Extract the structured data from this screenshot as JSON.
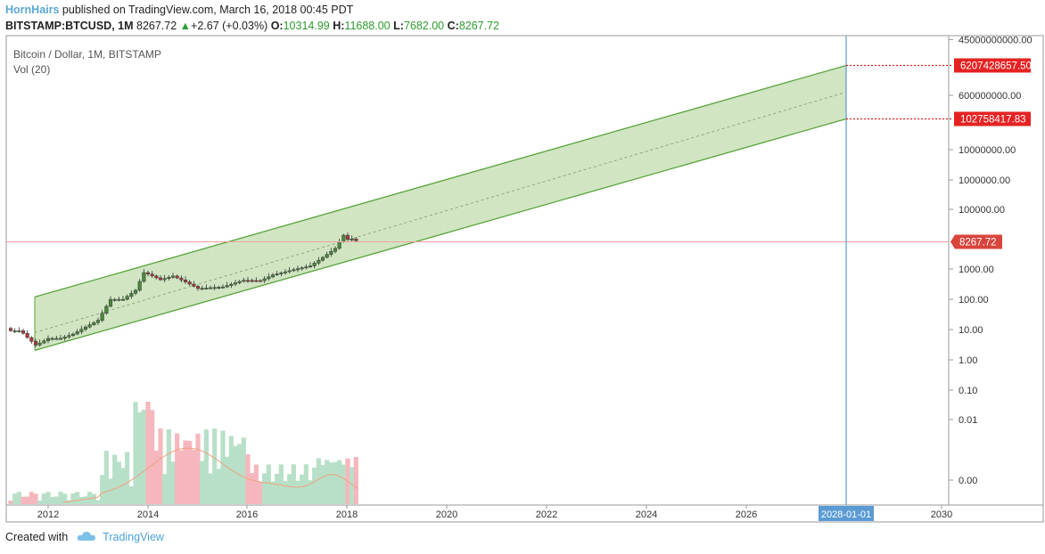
{
  "header": {
    "author": "HornHairs",
    "published_text": "published on TradingView.com, March 16, 2018 00:45 PDT",
    "symbol": "BITSTAMP:BTCUSD, 1M",
    "last": "8267.72",
    "change": "+2.67 (+0.03%)",
    "o_label": "O:",
    "o_value": "10314.99",
    "h_label": "H:",
    "h_value": "11688.00",
    "l_label": "L:",
    "l_value": "7682.00",
    "c_label": "C:",
    "c_value": "8267.72"
  },
  "legend": {
    "title": "Bitcoin / Dollar, 1M, BITSTAMP",
    "vol": "Vol (20)"
  },
  "footer": {
    "created_with": "Created with",
    "brand": "TradingView"
  },
  "colors": {
    "up_candle": "#4a8a3a",
    "down_candle": "#b23a3a",
    "channel_fill": "#c9e0b8",
    "channel_line": "#5aa33a",
    "price_line": "#f2a0a0",
    "vertical_line": "#5b9bd5",
    "label_red": "#e52222",
    "label_price": "#d9453d",
    "vol_up": "#b8e0c8",
    "vol_down": "#f5b7bd",
    "vol_ma": "#f0a080"
  },
  "chart_data": {
    "type": "candlestick",
    "title": "Bitcoin / Dollar, 1M, BITSTAMP",
    "y_scale": "log",
    "y_ticks": [
      "45000000000.00",
      "600000000.00",
      "10000000.00",
      "1000000.00",
      "100000.00",
      "1000.00",
      "100.00",
      "10.00",
      "1.00",
      "0.10",
      "0.01",
      "0.00"
    ],
    "x_ticks": [
      "2012",
      "2014",
      "2016",
      "2018",
      "2020",
      "2022",
      "2024",
      "2026",
      "2030"
    ],
    "x_highlight": "2028-01-01",
    "last_price": "8267.72",
    "channel_upper_label": "6207428657.50",
    "channel_lower_label": "102758417.83",
    "channel": {
      "start_year": 2011.45,
      "end_year": 2028.0,
      "upper_start": 120,
      "upper_end": 6207428657.5,
      "lower_start": 2,
      "lower_end": 102758417.83
    },
    "monthly_close_approx": [
      {
        "t": 2011.45,
        "c": 9
      },
      {
        "t": 2011.6,
        "c": 5
      },
      {
        "t": 2011.75,
        "c": 3
      },
      {
        "t": 2011.9,
        "c": 4
      },
      {
        "t": 2012.0,
        "c": 5
      },
      {
        "t": 2012.25,
        "c": 5
      },
      {
        "t": 2012.5,
        "c": 7
      },
      {
        "t": 2012.75,
        "c": 12
      },
      {
        "t": 2013.0,
        "c": 20
      },
      {
        "t": 2013.25,
        "c": 100
      },
      {
        "t": 2013.5,
        "c": 100
      },
      {
        "t": 2013.75,
        "c": 200
      },
      {
        "t": 2013.92,
        "c": 800
      },
      {
        "t": 2014.25,
        "c": 450
      },
      {
        "t": 2014.5,
        "c": 600
      },
      {
        "t": 2014.75,
        "c": 380
      },
      {
        "t": 2015.0,
        "c": 230
      },
      {
        "t": 2015.5,
        "c": 260
      },
      {
        "t": 2015.9,
        "c": 430
      },
      {
        "t": 2016.25,
        "c": 420
      },
      {
        "t": 2016.5,
        "c": 650
      },
      {
        "t": 2016.9,
        "c": 960
      },
      {
        "t": 2017.25,
        "c": 1300
      },
      {
        "t": 2017.5,
        "c": 2500
      },
      {
        "t": 2017.75,
        "c": 5000
      },
      {
        "t": 2017.92,
        "c": 14000
      },
      {
        "t": 2018.0,
        "c": 10000
      },
      {
        "t": 2018.1,
        "c": 10300
      },
      {
        "t": 2018.2,
        "c": 8267.72
      }
    ]
  }
}
